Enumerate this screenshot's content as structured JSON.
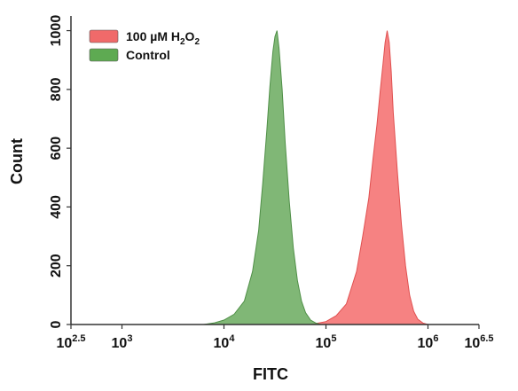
{
  "chart_data": {
    "type": "area",
    "xlabel": "FITC",
    "ylabel": "Count",
    "x_scale": "log10",
    "xlim_log10": [
      2.5,
      6.5
    ],
    "ylim": [
      0,
      1050
    ],
    "x_ticks": [
      {
        "log10": 2.5,
        "base": "10",
        "exp": "2.5"
      },
      {
        "log10": 3,
        "base": "10",
        "exp": "3"
      },
      {
        "log10": 4,
        "base": "10",
        "exp": "4"
      },
      {
        "log10": 5,
        "base": "10",
        "exp": "5"
      },
      {
        "log10": 6,
        "base": "10",
        "exp": "6"
      },
      {
        "log10": 6.5,
        "base": "10",
        "exp": "6.5"
      }
    ],
    "y_ticks": [
      "0",
      "200",
      "400",
      "600",
      "800",
      "1000"
    ],
    "legend": {
      "placement": "top-left",
      "items": [
        {
          "prefix": "100 µM H",
          "sub1": "2",
          "mid": "O",
          "sub2": "2",
          "color": "#f06a6a"
        },
        {
          "prefix": "Control",
          "sub1": "",
          "mid": "",
          "sub2": "",
          "color": "#5eaa52"
        }
      ]
    },
    "series": [
      {
        "name": "100 µM H2O2",
        "fill": "#f46c6c",
        "stroke": "#e05050",
        "x_log10": [
          4.85,
          5.0,
          5.1,
          5.2,
          5.3,
          5.36,
          5.42,
          5.46,
          5.5,
          5.53,
          5.56,
          5.58,
          5.6,
          5.62,
          5.64,
          5.66,
          5.7,
          5.74,
          5.78,
          5.82,
          5.86,
          5.9,
          5.95,
          6.0
        ],
        "y": [
          0,
          10,
          30,
          70,
          180,
          300,
          430,
          560,
          680,
          790,
          890,
          960,
          1000,
          960,
          860,
          720,
          520,
          340,
          200,
          100,
          45,
          18,
          5,
          0
        ]
      },
      {
        "name": "Control",
        "fill": "#6aaa5e",
        "stroke": "#4f8f47",
        "x_log10": [
          3.8,
          3.9,
          4.0,
          4.1,
          4.2,
          4.28,
          4.34,
          4.38,
          4.42,
          4.45,
          4.48,
          4.5,
          4.52,
          4.54,
          4.57,
          4.6,
          4.64,
          4.68,
          4.72,
          4.76,
          4.8,
          4.85,
          4.9,
          4.95
        ],
        "y": [
          0,
          5,
          15,
          35,
          80,
          180,
          320,
          480,
          660,
          810,
          930,
          980,
          1000,
          940,
          800,
          620,
          420,
          260,
          150,
          80,
          40,
          15,
          5,
          0
        ]
      }
    ]
  }
}
